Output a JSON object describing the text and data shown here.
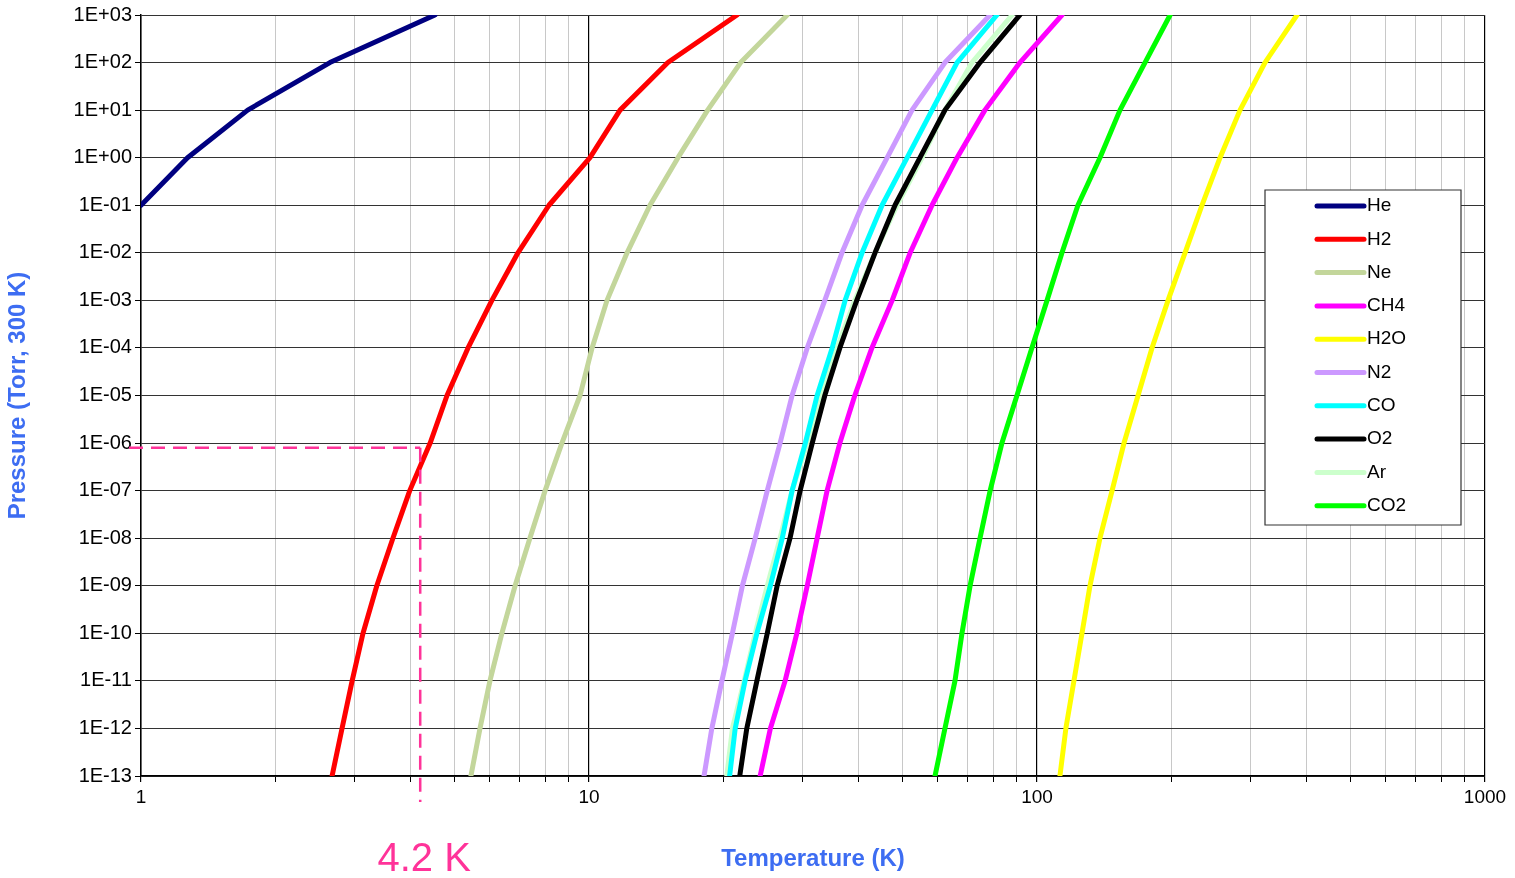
{
  "chart_data": {
    "type": "line",
    "xlabel": "Temperature (K)",
    "ylabel": "Pressure (Torr, 300 K)",
    "log": "xy",
    "grid": true,
    "legend": "right",
    "marker": "none",
    "line_style": "solid",
    "xlim": [
      1,
      1000
    ],
    "ylim": [
      1e-13,
      1000
    ],
    "xticks": [
      1,
      {
        "value": 2,
        "label": null
      },
      {
        "value": 3,
        "label": null
      },
      {
        "value": 4,
        "label": null
      },
      {
        "value": 5,
        "label": null
      },
      {
        "value": 6,
        "label": null
      },
      {
        "value": 7,
        "label": null
      },
      {
        "value": 8,
        "label": null
      },
      {
        "value": 9,
        "label": null
      },
      10,
      {
        "value": 20,
        "label": null
      },
      {
        "value": 30,
        "label": null
      },
      {
        "value": 40,
        "label": null
      },
      {
        "value": 50,
        "label": null
      },
      {
        "value": 60,
        "label": null
      },
      {
        "value": 70,
        "label": null
      },
      {
        "value": 80,
        "label": null
      },
      {
        "value": 90,
        "label": null
      },
      100,
      {
        "value": 200,
        "label": null
      },
      {
        "value": 300,
        "label": null
      },
      {
        "value": 400,
        "label": null
      },
      {
        "value": 500,
        "label": null
      },
      {
        "value": 600,
        "label": null
      },
      {
        "value": 700,
        "label": null
      },
      {
        "value": 800,
        "label": null
      },
      {
        "value": 900,
        "label": null
      },
      1000
    ],
    "yticks": [
      {
        "value": 1e-13,
        "label": "1E-13"
      },
      {
        "value": 1e-12,
        "label": "1E-12"
      },
      {
        "value": 1e-11,
        "label": "1E-11"
      },
      {
        "value": 1e-10,
        "label": "1E-10"
      },
      {
        "value": 1e-09,
        "label": "1E-09"
      },
      {
        "value": 1e-08,
        "label": "1E-08"
      },
      {
        "value": 1e-07,
        "label": "1E-07"
      },
      {
        "value": 1e-06,
        "label": "1E-06"
      },
      {
        "value": 1e-05,
        "label": "1E-05"
      },
      {
        "value": 0.0001,
        "label": "1E-04"
      },
      {
        "value": 0.001,
        "label": "1E-03"
      },
      {
        "value": 0.01,
        "label": "1E-02"
      },
      {
        "value": 0.1,
        "label": "1E-01"
      },
      {
        "value": 1,
        "label": "1E+00"
      },
      {
        "value": 10,
        "label": "1E+01"
      },
      {
        "value": 100,
        "label": "1E+02"
      },
      {
        "value": 1000,
        "label": "1E+03"
      }
    ],
    "ref_lines": [
      {
        "axis": "y",
        "value": 8e-07,
        "color": "#ff3399",
        "line_style": "dashed"
      },
      {
        "axis": "x",
        "value": 4.2,
        "label": "4.2 K",
        "color": "#ff3399",
        "line_style": "dashed"
      }
    ],
    "series": [
      {
        "name": "He",
        "color": "#000080",
        "x": [
          1,
          1.27,
          1.73,
          2.64,
          4.53
        ],
        "values": [
          0.1,
          1,
          10,
          100,
          1000
        ]
      },
      {
        "name": "H2",
        "color": "#ff0000",
        "x": [
          2.67,
          2.81,
          2.96,
          3.13,
          3.36,
          3.65,
          3.98,
          4.42,
          4.82,
          5.37,
          6.07,
          6.94,
          8.14,
          10.05,
          11.73,
          15.0,
          21.4
        ],
        "values": [
          1e-13,
          1e-12,
          1e-11,
          1e-10,
          1e-09,
          1e-08,
          1e-07,
          1e-06,
          1e-05,
          0.0001,
          0.001,
          0.01,
          0.1,
          1,
          10,
          100,
          1000
        ]
      },
      {
        "name": "Ne",
        "color": "#c3d69b",
        "x": [
          5.45,
          5.71,
          6.01,
          6.39,
          6.84,
          7.38,
          7.98,
          8.7,
          9.55,
          10.16,
          10.97,
          12.16,
          13.68,
          15.8,
          18.4,
          21.8,
          27.7
        ],
        "values": [
          1e-13,
          1e-12,
          1e-11,
          1e-10,
          1e-09,
          1e-08,
          1e-07,
          1e-06,
          1e-05,
          0.0001,
          0.001,
          0.01,
          0.1,
          1,
          10,
          100,
          1000
        ]
      },
      {
        "name": "CH4",
        "color": "#ff00ff",
        "x": [
          24.1,
          25.4,
          27.4,
          29.1,
          30.7,
          32.3,
          34.0,
          36.3,
          39.2,
          42.8,
          47.5,
          52.1,
          58.3,
          66.3,
          76.5,
          91.6,
          113.7
        ],
        "values": [
          1e-13,
          1e-12,
          1e-11,
          1e-10,
          1e-09,
          1e-08,
          1e-07,
          1e-06,
          1e-05,
          0.0001,
          0.001,
          0.01,
          0.1,
          1,
          10,
          100,
          1000
        ]
      },
      {
        "name": "H2O",
        "color": "#ffff00",
        "x": [
          112.5,
          116.0,
          120.9,
          126.0,
          131.3,
          138.2,
          147.1,
          156.4,
          168.1,
          180.6,
          196.1,
          214.0,
          233.5,
          256.2,
          283.9,
          322.8,
          380.5
        ],
        "values": [
          1e-13,
          1e-12,
          1e-11,
          1e-10,
          1e-09,
          1e-08,
          1e-07,
          1e-06,
          1e-05,
          0.0001,
          0.001,
          0.01,
          0.1,
          1,
          10,
          100,
          1000
        ]
      },
      {
        "name": "N2",
        "color": "#cc99ff",
        "x": [
          18.06,
          18.8,
          19.8,
          20.9,
          22.0,
          23.5,
          25.0,
          26.7,
          28.4,
          30.7,
          33.6,
          36.7,
          40.7,
          46.3,
          52.6,
          62.3,
          78.6
        ],
        "values": [
          1e-13,
          1e-12,
          1e-11,
          1e-10,
          1e-09,
          1e-08,
          1e-07,
          1e-06,
          1e-05,
          0.0001,
          0.001,
          0.01,
          0.1,
          1,
          10,
          100,
          1000
        ]
      },
      {
        "name": "CO",
        "color": "#00ffff",
        "x": [
          20.6,
          21.2,
          22.3,
          23.7,
          25.4,
          27.0,
          28.4,
          30.4,
          32.3,
          34.9,
          37.3,
          40.7,
          45.1,
          51.3,
          58.3,
          66.3,
          81.4
        ],
        "values": [
          1e-13,
          1e-12,
          1e-11,
          1e-10,
          1e-09,
          1e-08,
          1e-07,
          1e-06,
          1e-05,
          0.0001,
          0.001,
          0.01,
          0.1,
          1,
          10,
          100,
          1000
        ]
      },
      {
        "name": "O2",
        "color": "#000000",
        "x": [
          21.7,
          22.5,
          23.7,
          25.0,
          26.3,
          28.1,
          29.6,
          31.5,
          33.6,
          36.3,
          39.6,
          43.5,
          48.2,
          54.8,
          62.3,
          74.6,
          91.6
        ],
        "values": [
          1e-13,
          1e-12,
          1e-11,
          1e-10,
          1e-09,
          1e-08,
          1e-07,
          1e-06,
          1e-05,
          0.0001,
          0.001,
          0.01,
          0.1,
          1,
          10,
          100,
          1000
        ]
      },
      {
        "name": "Ar",
        "color": "#ccffcc",
        "x": [
          20.3,
          20.9,
          22.2,
          23.5,
          25.0,
          26.7,
          28.4,
          30.7,
          33.1,
          35.8,
          39.2,
          43.5,
          48.7,
          55.4,
          62.3,
          71.6,
          88.0
        ],
        "values": [
          1e-13,
          1e-12,
          1e-11,
          1e-10,
          1e-09,
          1e-08,
          1e-07,
          1e-06,
          1e-05,
          0.0001,
          0.001,
          0.01,
          0.1,
          1,
          10,
          100,
          1000
        ]
      },
      {
        "name": "CO2",
        "color": "#00ff00",
        "x": [
          59.2,
          62.3,
          65.6,
          68.0,
          70.9,
          74.6,
          78.6,
          83.5,
          90.2,
          97.4,
          105.3,
          113.7,
          123.4,
          138.2,
          153.2,
          174.2,
          198.2
        ],
        "values": [
          1e-13,
          1e-12,
          1e-11,
          1e-10,
          1e-09,
          1e-08,
          1e-07,
          1e-06,
          1e-05,
          0.0001,
          0.001,
          0.01,
          0.1,
          1,
          10,
          100,
          1000
        ]
      }
    ]
  }
}
